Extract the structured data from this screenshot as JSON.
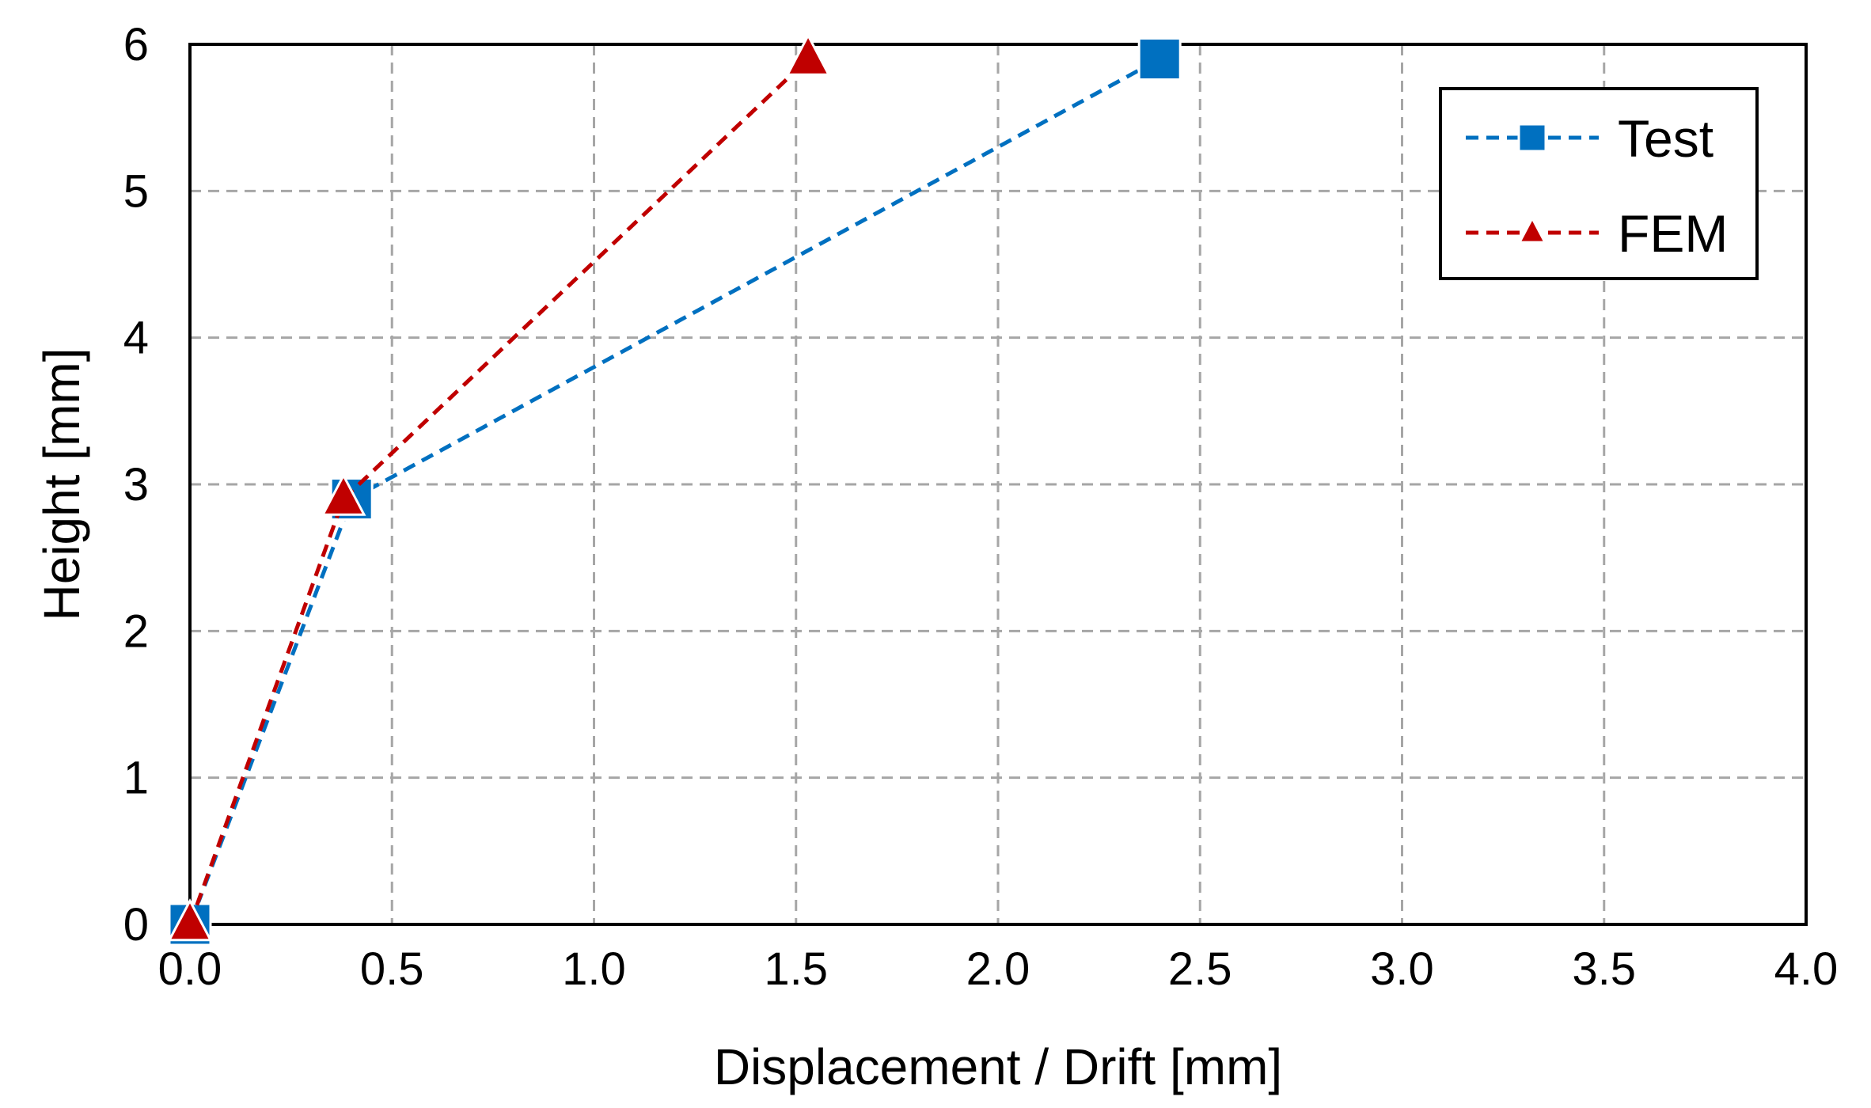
{
  "chart_data": {
    "type": "line",
    "title": "",
    "xlabel": "Displacement / Drift [mm]",
    "ylabel": "Height [mm]",
    "xlim": [
      0,
      4
    ],
    "ylim": [
      0,
      6
    ],
    "x_ticks": [
      0,
      0.5,
      1,
      1.5,
      2,
      2.5,
      3,
      3.5,
      4
    ],
    "x_tick_labels": [
      "0.0",
      "0.5",
      "1.0",
      "1.5",
      "2.0",
      "2.5",
      "3.0",
      "3.5",
      "4.0"
    ],
    "y_ticks": [
      0,
      1,
      2,
      3,
      4,
      5,
      6
    ],
    "y_tick_labels": [
      "0",
      "1",
      "2",
      "3",
      "4",
      "5",
      "6"
    ],
    "grid": true,
    "legend_position": "top-right",
    "series": [
      {
        "name": "Test",
        "color": "#0070C0",
        "marker": "square",
        "line_style": "dashed",
        "x": [
          0,
          0.4,
          2.4
        ],
        "y": [
          0,
          2.9,
          5.9
        ]
      },
      {
        "name": "FEM",
        "color": "#C00000",
        "marker": "triangle",
        "line_style": "dashed",
        "x": [
          0,
          0.38,
          1.53
        ],
        "y": [
          0,
          2.9,
          5.9
        ]
      }
    ]
  }
}
